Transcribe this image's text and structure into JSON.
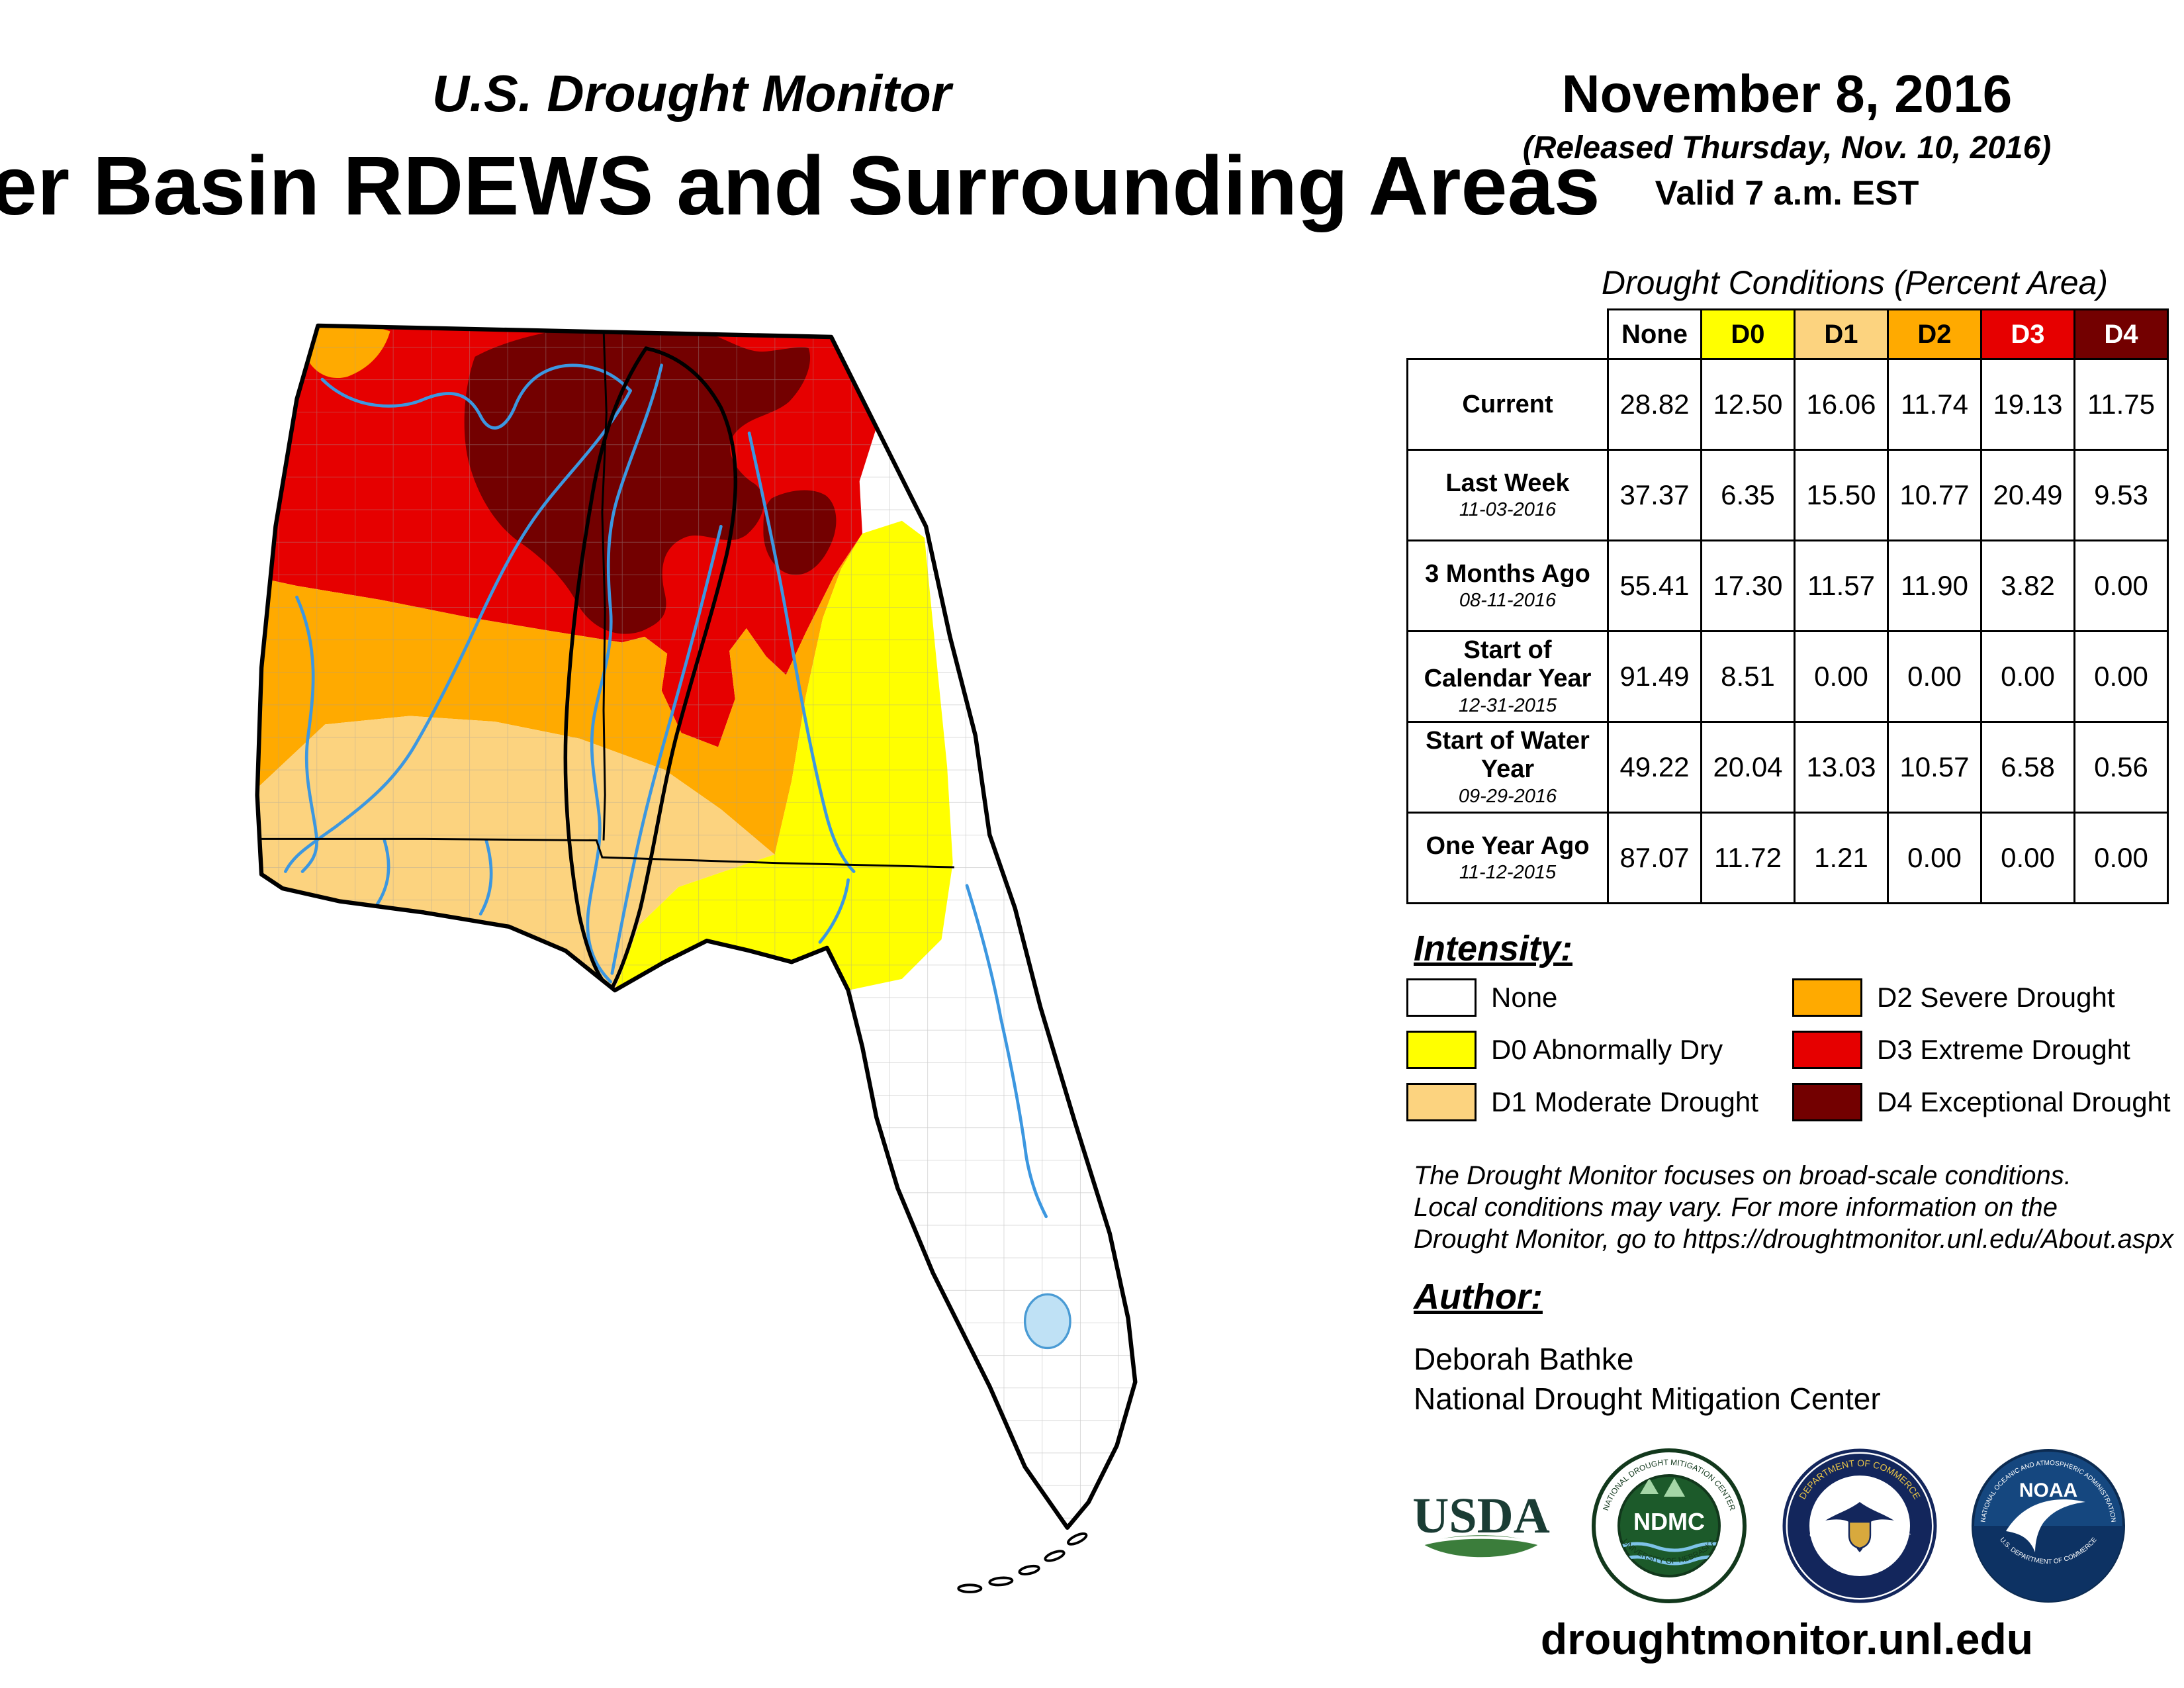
{
  "header": {
    "monitor_title": "U.S. Drought Monitor",
    "map_title": "er Basin RDEWS and Surrounding Areas",
    "date": "November 8, 2016",
    "released": "(Released Thursday, Nov. 10, 2016)",
    "valid": "Valid 7 a.m. EST"
  },
  "table": {
    "title": "Drought Conditions (Percent Area)",
    "columns": [
      "None",
      "D0",
      "D1",
      "D2",
      "D3",
      "D4"
    ],
    "column_colors": [
      "#FFFFFF",
      "#FFFF00",
      "#FCD37F",
      "#FFAA00",
      "#E60000",
      "#730000"
    ],
    "column_text_colors": [
      "#000000",
      "#000000",
      "#000000",
      "#000000",
      "#FFFFFF",
      "#FFFFFF"
    ],
    "rows": [
      {
        "label": "Current",
        "sublabel": "",
        "values": [
          "28.82",
          "12.50",
          "16.06",
          "11.74",
          "19.13",
          "11.75"
        ]
      },
      {
        "label": "Last Week",
        "sublabel": "11-03-2016",
        "values": [
          "37.37",
          "6.35",
          "15.50",
          "10.77",
          "20.49",
          "9.53"
        ]
      },
      {
        "label": "3 Months Ago",
        "sublabel": "08-11-2016",
        "values": [
          "55.41",
          "17.30",
          "11.57",
          "11.90",
          "3.82",
          "0.00"
        ]
      },
      {
        "label": "Start of Calendar Year",
        "sublabel": "12-31-2015",
        "values": [
          "91.49",
          "8.51",
          "0.00",
          "0.00",
          "0.00",
          "0.00"
        ]
      },
      {
        "label": "Start of Water Year",
        "sublabel": "09-29-2016",
        "values": [
          "49.22",
          "20.04",
          "13.03",
          "10.57",
          "6.58",
          "0.56"
        ]
      },
      {
        "label": "One Year Ago",
        "sublabel": "11-12-2015",
        "values": [
          "87.07",
          "11.72",
          "1.21",
          "0.00",
          "0.00",
          "0.00"
        ]
      }
    ]
  },
  "legend": {
    "title": "Intensity:",
    "items": [
      {
        "label": "None",
        "color": "#FFFFFF"
      },
      {
        "label": "D0 Abnormally Dry",
        "color": "#FFFF00"
      },
      {
        "label": "D1 Moderate Drought",
        "color": "#FCD37F"
      },
      {
        "label": "D2 Severe Drought",
        "color": "#FFAA00"
      },
      {
        "label": "D3 Extreme Drought",
        "color": "#E60000"
      },
      {
        "label": "D4 Exceptional Drought",
        "color": "#730000"
      }
    ]
  },
  "disclaimer": {
    "line1": "The Drought Monitor focuses on broad-scale conditions.",
    "line2": "Local conditions may vary. For more information on the",
    "line3": "Drought Monitor, go to https://droughtmonitor.unl.edu/About.aspx"
  },
  "author": {
    "title": "Author:",
    "name": "Deborah Bathke",
    "org": "National Drought Mitigation Center"
  },
  "footer": {
    "url": "droughtmonitor.unl.edu"
  },
  "logos": {
    "usda": "USDA",
    "ndmc_text": "NDMC",
    "ndmc_rim_top": "NATIONAL DROUGHT MITIGATION CENTER",
    "ndmc_rim_bottom": "UNIVERSITY OF NEBRASKA",
    "doc_rim_top": "DEPARTMENT OF COMMERCE",
    "doc_rim_bottom": "UNITED STATES OF AMERICA",
    "noaa_text": "NOAA",
    "noaa_rim_top": "NATIONAL OCEANIC AND ATMOSPHERIC ADMINISTRATION",
    "noaa_rim_bottom": "U.S. DEPARTMENT OF COMMERCE"
  },
  "map": {
    "none": "#FFFFFF",
    "d0": "#FFFF00",
    "d1": "#FCD37F",
    "d2": "#FFAA00",
    "d3": "#E60000",
    "d4": "#730000",
    "river": "#3C97E0",
    "lake": "#BFE1F5"
  },
  "chart_data": {
    "type": "table",
    "title": "Drought Conditions (Percent Area)",
    "categories": [
      "None",
      "D0",
      "D1",
      "D2",
      "D3",
      "D4"
    ],
    "series": [
      {
        "name": "Current",
        "values": [
          28.82,
          12.5,
          16.06,
          11.74,
          19.13,
          11.75
        ]
      },
      {
        "name": "Last Week (11-03-2016)",
        "values": [
          37.37,
          6.35,
          15.5,
          10.77,
          20.49,
          9.53
        ]
      },
      {
        "name": "3 Months Ago (08-11-2016)",
        "values": [
          55.41,
          17.3,
          11.57,
          11.9,
          3.82,
          0.0
        ]
      },
      {
        "name": "Start of Calendar Year (12-31-2015)",
        "values": [
          91.49,
          8.51,
          0.0,
          0.0,
          0.0,
          0.0
        ]
      },
      {
        "name": "Start of Water Year (09-29-2016)",
        "values": [
          49.22,
          20.04,
          13.03,
          10.57,
          6.58,
          0.56
        ]
      },
      {
        "name": "One Year Ago (11-12-2015)",
        "values": [
          87.07,
          11.72,
          1.21,
          0.0,
          0.0,
          0.0
        ]
      }
    ]
  }
}
